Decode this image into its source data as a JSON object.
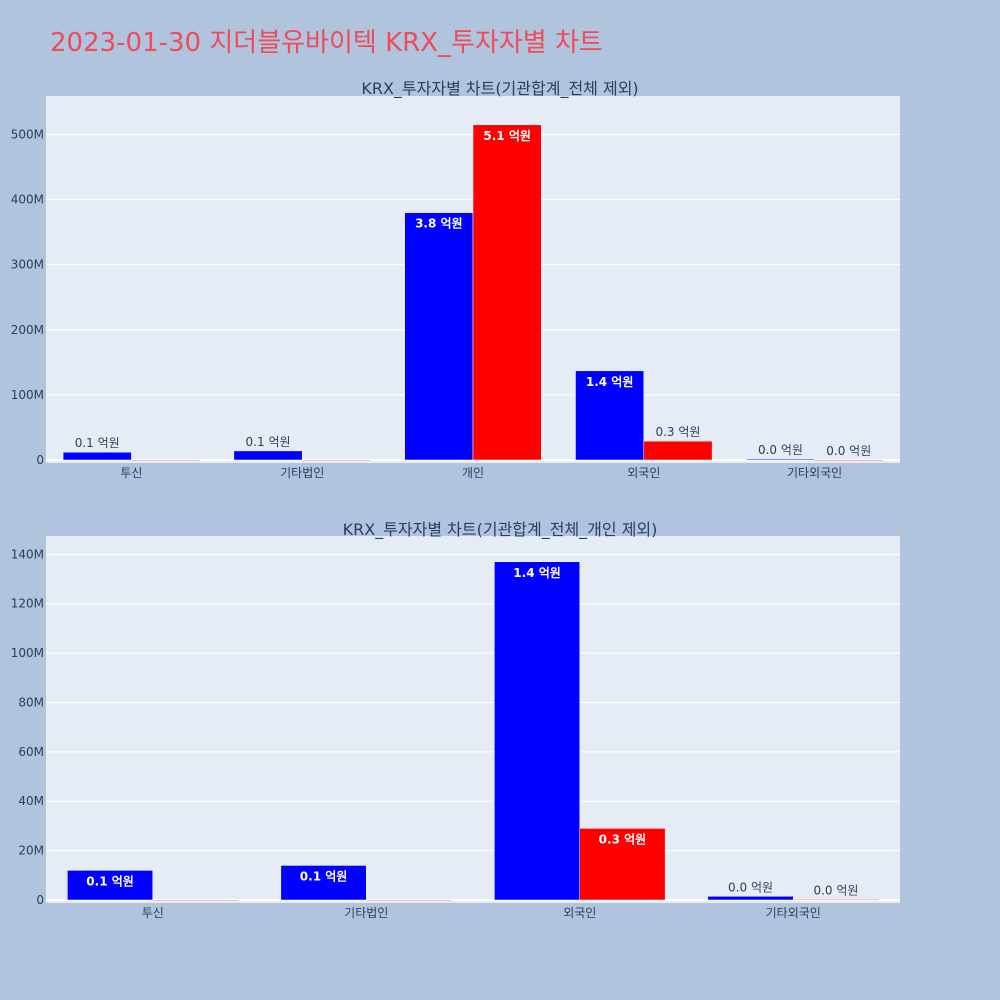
{
  "page": {
    "title": "2023-01-30 지더블유바이텍 KRX_투자자별 차트",
    "title_color": "#ee4b5b",
    "background": "#b0c4de",
    "plot_background": "#e5ecf6"
  },
  "chart_data": [
    {
      "type": "bar",
      "title": "KRX_투자자별 차트(기관합계_전체 제외)",
      "categories": [
        "투신",
        "기타법인",
        "개인",
        "외국인",
        "기타외국인"
      ],
      "ylim": [
        0,
        550000000
      ],
      "yticks": [
        0,
        100000000,
        200000000,
        300000000,
        400000000,
        500000000
      ],
      "ytick_labels": [
        "0",
        "100M",
        "200M",
        "300M",
        "400M",
        "500M"
      ],
      "grid": true,
      "series": [
        {
          "color": "#0000ff",
          "values": [
            12000000,
            14000000,
            380000000,
            137000000,
            1500000
          ],
          "labels": [
            "0.1 억원",
            "0.1 억원",
            "3.8 억원",
            "1.4 억원",
            "0.0 억원"
          ]
        },
        {
          "color": "#ff0000",
          "values": [
            0,
            0,
            515000000,
            29000000,
            200000
          ],
          "labels": [
            "",
            "",
            "5.1 억원",
            "0.3 억원",
            "0.0 억원"
          ]
        }
      ]
    },
    {
      "type": "bar",
      "title": "KRX_투자자별 차트(기관합계_전체_개인 제외)",
      "categories": [
        "투신",
        "기타법인",
        "외국인",
        "기타외국인"
      ],
      "ylim": [
        0,
        145000000
      ],
      "yticks": [
        0,
        20000000,
        40000000,
        60000000,
        80000000,
        100000000,
        120000000,
        140000000
      ],
      "ytick_labels": [
        "0",
        "20M",
        "40M",
        "60M",
        "80M",
        "100M",
        "120M",
        "140M"
      ],
      "grid": true,
      "series": [
        {
          "color": "#0000ff",
          "values": [
            12000000,
            14000000,
            137000000,
            1500000
          ],
          "labels": [
            "0.1 억원",
            "0.1 억원",
            "1.4 억원",
            "0.0 억원"
          ]
        },
        {
          "color": "#ff0000",
          "values": [
            0,
            0,
            29000000,
            200000
          ],
          "labels": [
            "",
            "",
            "0.3 억원",
            "0.0 억원"
          ]
        }
      ]
    }
  ]
}
